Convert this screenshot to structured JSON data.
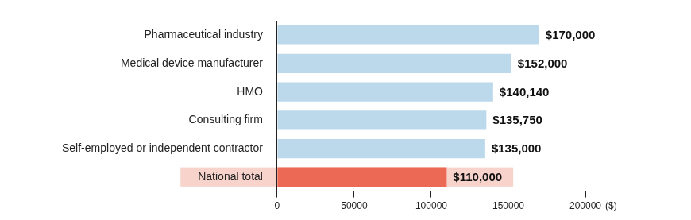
{
  "chart_data": {
    "type": "bar",
    "orientation": "horizontal",
    "categories": [
      "Pharmaceutical industry",
      "Medical device manufacturer",
      "HMO",
      "Consulting firm",
      "Self-employed or independent contractor",
      "National total"
    ],
    "values": [
      170000,
      152000,
      140140,
      135750,
      135000,
      110000
    ],
    "value_labels": [
      "$170,000",
      "$152,000",
      "$140,140",
      "$135,750",
      "$135,000",
      "$110,000"
    ],
    "colors": [
      "#bcd9ec",
      "#bcd9ec",
      "#bcd9ec",
      "#bcd9ec",
      "#bcd9ec",
      "#ec6a55"
    ],
    "xlabel": "($)",
    "xlim": [
      0,
      200000
    ],
    "xticks": [
      0,
      50000,
      100000,
      150000,
      200000
    ],
    "grid": false,
    "data_labels": true
  }
}
